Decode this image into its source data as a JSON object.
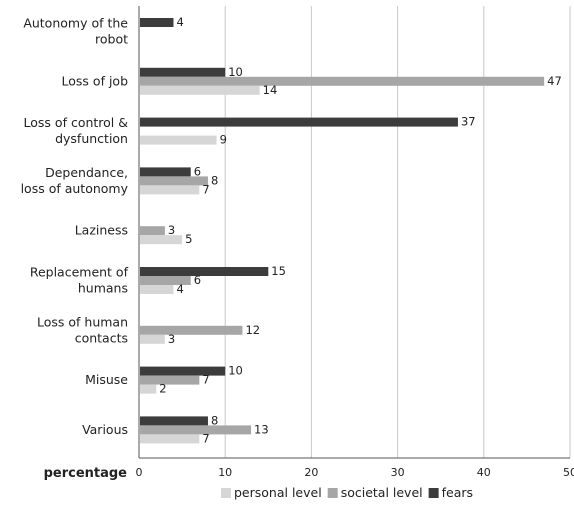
{
  "chart_data": {
    "type": "bar",
    "orientation": "horizontal",
    "categories": [
      [
        "Autonomy of the",
        "robot"
      ],
      [
        "Loss of job"
      ],
      [
        "Loss of control &",
        "dysfunction"
      ],
      [
        "Dependance,",
        "loss of autonomy"
      ],
      [
        "Laziness"
      ],
      [
        "Replacement of",
        "humans"
      ],
      [
        "Loss of human",
        "contacts"
      ],
      [
        "Misuse"
      ],
      [
        "Various"
      ]
    ],
    "series": [
      {
        "name": "fears",
        "color": "#3c3c3c",
        "values": [
          4,
          10,
          37,
          6,
          null,
          15,
          null,
          10,
          8
        ]
      },
      {
        "name": "societal level",
        "color": "#a6a6a6",
        "values": [
          null,
          47,
          null,
          8,
          3,
          6,
          12,
          7,
          13
        ]
      },
      {
        "name": "personal level",
        "color": "#d6d6d6",
        "values": [
          null,
          14,
          9,
          7,
          5,
          4,
          3,
          2,
          7
        ]
      }
    ],
    "xlabel": "percentage",
    "xlim": [
      0,
      50
    ],
    "xticks": [
      0,
      10,
      20,
      30,
      40,
      50
    ],
    "grid": true,
    "legend_order": [
      "personal level",
      "societal level",
      "fears"
    ],
    "legend_position": "bottom"
  }
}
